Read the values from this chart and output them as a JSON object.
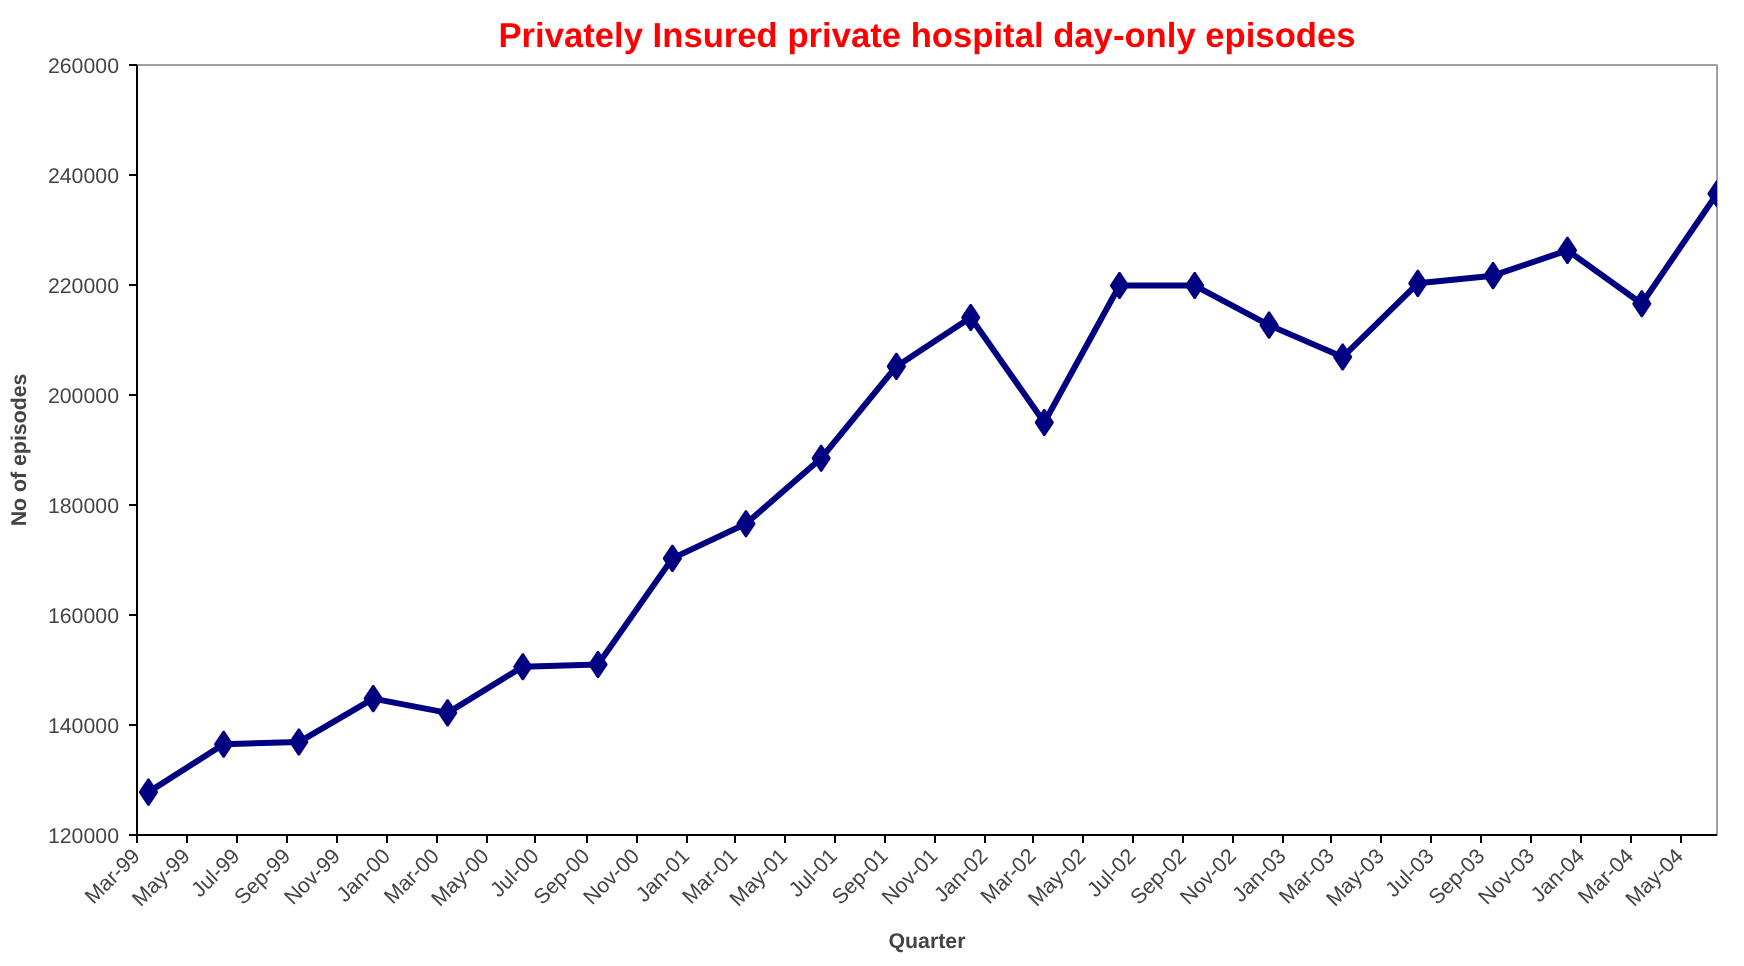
{
  "chart_data": {
    "type": "line",
    "title": "Privately Insured private hospital day-only episodes",
    "xlabel": "Quarter",
    "ylabel": "No of episodes",
    "x": [
      "1999-03-15",
      "1999-06-15",
      "1999-09-15",
      "1999-12-15",
      "2000-03-15",
      "2000-06-15",
      "2000-09-15",
      "2000-12-15",
      "2001-03-15",
      "2001-06-15",
      "2001-09-15",
      "2001-12-15",
      "2002-03-15",
      "2002-06-15",
      "2002-09-15",
      "2002-12-15",
      "2003-03-15",
      "2003-06-15",
      "2003-09-15",
      "2003-12-15",
      "2004-03-15",
      "2004-06-15"
    ],
    "series": [
      {
        "color": "#000080",
        "values": [
          127800,
          136500,
          136900,
          144800,
          142200,
          150600,
          151000,
          170300,
          176600,
          188500,
          205200,
          214100,
          195000,
          219900,
          219900,
          212700,
          206900,
          220300,
          221700,
          226300,
          216600,
          236600
        ]
      }
    ],
    "xlim": [
      "1999-03-01",
      "2004-06-15"
    ],
    "xticks": [
      {
        "value": "1999-03",
        "label": "Mar-99"
      },
      {
        "value": "1999-05",
        "label": "May-99"
      },
      {
        "value": "1999-07",
        "label": "Jul-99"
      },
      {
        "value": "1999-09",
        "label": "Sep-99"
      },
      {
        "value": "1999-11",
        "label": "Nov-99"
      },
      {
        "value": "2000-01",
        "label": "Jan-00"
      },
      {
        "value": "2000-03",
        "label": "Mar-00"
      },
      {
        "value": "2000-05",
        "label": "May-00"
      },
      {
        "value": "2000-07",
        "label": "Jul-00"
      },
      {
        "value": "2000-09",
        "label": "Sep-00"
      },
      {
        "value": "2000-11",
        "label": "Nov-00"
      },
      {
        "value": "2001-01",
        "label": "Jan-01"
      },
      {
        "value": "2001-03",
        "label": "Mar-01"
      },
      {
        "value": "2001-05",
        "label": "May-01"
      },
      {
        "value": "2001-07",
        "label": "Jul-01"
      },
      {
        "value": "2001-09",
        "label": "Sep-01"
      },
      {
        "value": "2001-11",
        "label": "Nov-01"
      },
      {
        "value": "2002-01",
        "label": "Jan-02"
      },
      {
        "value": "2002-03",
        "label": "Mar-02"
      },
      {
        "value": "2002-05",
        "label": "May-02"
      },
      {
        "value": "2002-07",
        "label": "Jul-02"
      },
      {
        "value": "2002-09",
        "label": "Sep-02"
      },
      {
        "value": "2002-11",
        "label": "Nov-02"
      },
      {
        "value": "2003-01",
        "label": "Jan-03"
      },
      {
        "value": "2003-03",
        "label": "Mar-03"
      },
      {
        "value": "2003-05",
        "label": "May-03"
      },
      {
        "value": "2003-07",
        "label": "Jul-03"
      },
      {
        "value": "2003-09",
        "label": "Sep-03"
      },
      {
        "value": "2003-11",
        "label": "Nov-03"
      },
      {
        "value": "2004-01",
        "label": "Jan-04"
      },
      {
        "value": "2004-03",
        "label": "Mar-04"
      },
      {
        "value": "2004-05",
        "label": "May-04"
      }
    ],
    "ylim": [
      120000,
      260000
    ],
    "yticks": [
      120000,
      140000,
      160000,
      180000,
      200000,
      220000,
      240000,
      260000
    ],
    "grid": false,
    "marker": "diamond",
    "line_style": "solid"
  }
}
